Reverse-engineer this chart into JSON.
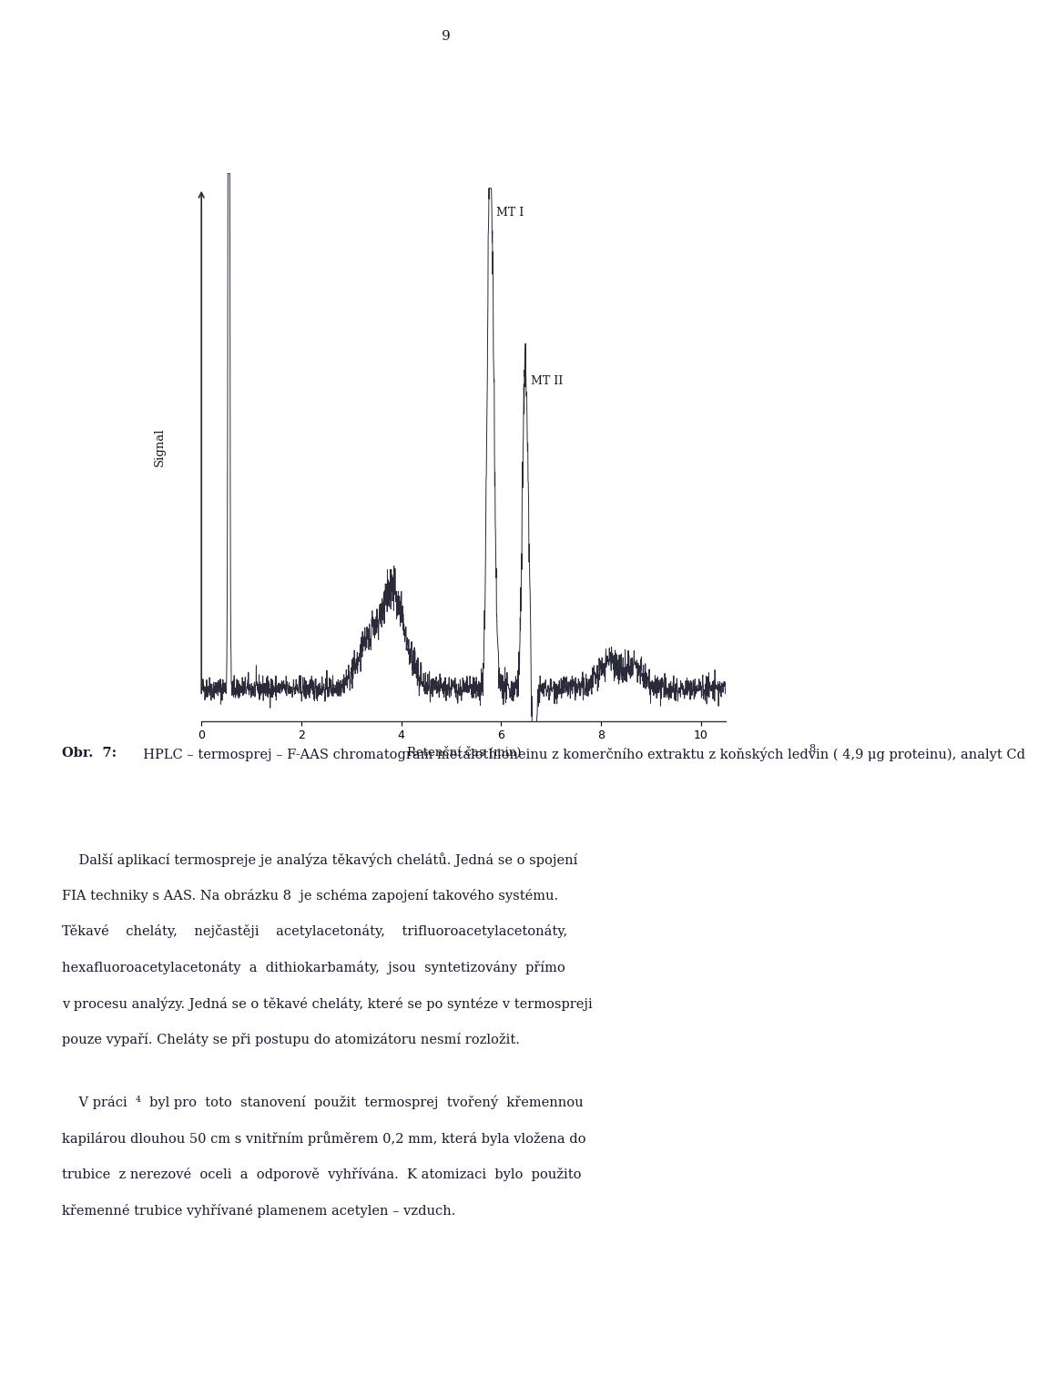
{
  "page_number": "9",
  "background_color": "#ffffff",
  "text_color": "#1a1a2e",
  "chart": {
    "xlabel": "Retenční čas (min)",
    "ylabel": "Signal",
    "xlim": [
      0,
      10.5
    ],
    "ylim": [
      -0.05,
      1.05
    ],
    "xticks": [
      0,
      2,
      4,
      6,
      8,
      10
    ],
    "label_MT_I": "MT I",
    "label_MT_II": "MT II"
  },
  "caption_bold": "Obr.  7:",
  "caption_text": "  HPLC – termosprej – F-AAS chromatogram metalothioneinu z komerčního extraktu z koňských ledvin ( 4,9 μg proteinu), analyt Cd ",
  "caption_superscript": "8",
  "paragraphs": [
    "    Další aplikací termospreje je analýza těkavých chelátů. Jedná se o spojení FIA techniky s AAS. Na obrázku 8  je schéma zapojení takového systému. Těkavé    cheláty,    nejčastěji    acetylacetonáty,    trifluoroacetylacetonáty, hexafluoroacetylacetonáty  a  dithiokarbamáty,  jsou  syntetizovány  přímo v procesu analýzy. Jedná se o těkavé cheláty, které se po syntéze v termospreji pouze vypaří. Cheláty se při postupu do atomizátoru nesmí rozložit.",
    "    V práci  4  byl pro  toto  stanovení  použit  termosprej  tvořený  křemennou kapilárou dlouhou 50 cm s vnitřním průměrem 0,2 mm, která byla vložena do trubice  z nerezové  oceli  a  odporově  vyhřívána.  K atomizaci  bylo  použito křemenné trubice vyhřívané plamenem acetylen – vzduch."
  ]
}
